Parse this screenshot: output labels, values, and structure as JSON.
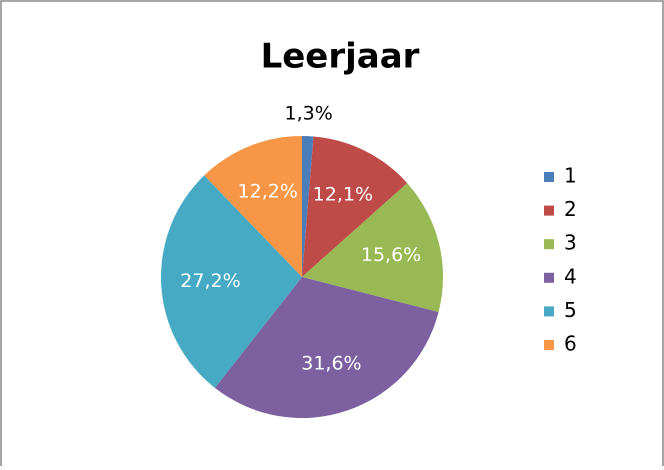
{
  "chart_data": {
    "type": "pie",
    "title": "Leerjaar",
    "categories": [
      "1",
      "2",
      "3",
      "4",
      "5",
      "6"
    ],
    "values": [
      1.3,
      12.1,
      15.6,
      31.6,
      27.2,
      12.2
    ],
    "value_labels": [
      "1,3%",
      "12,1%",
      "15,6%",
      "31,6%",
      "27,2%",
      "12,2%"
    ],
    "colors": [
      "#4a7ebb",
      "#be4b48",
      "#98b954",
      "#7d60a0",
      "#46aac5",
      "#f79646"
    ],
    "legend": "right"
  }
}
